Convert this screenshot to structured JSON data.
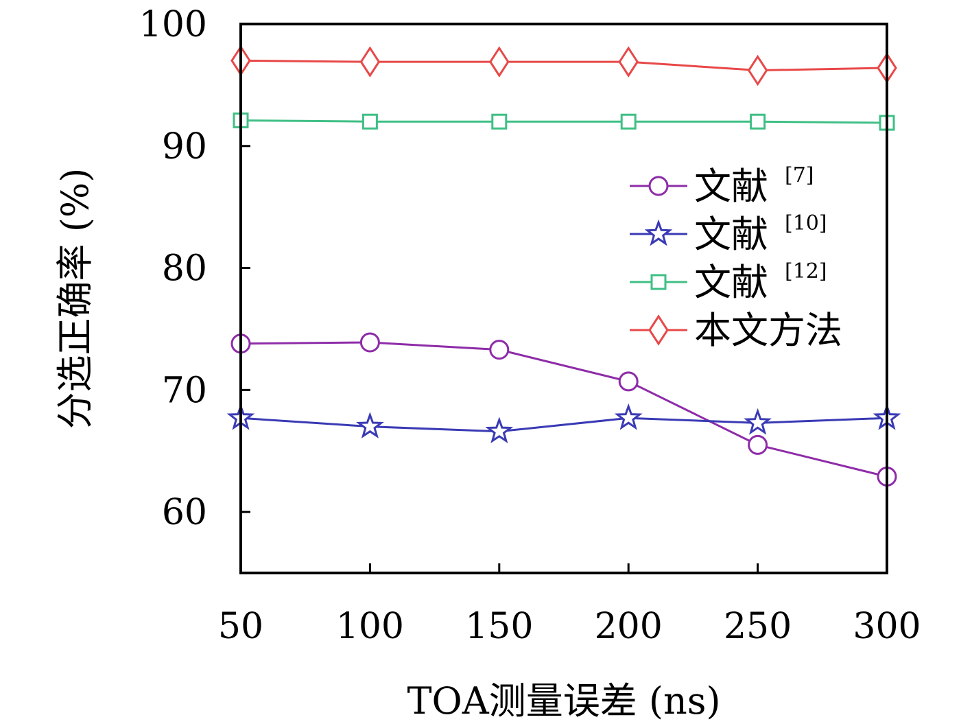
{
  "chart_data": {
    "type": "line",
    "xlabel": "TOA测量误差 (ns)",
    "ylabel": "分选正确率 (%)",
    "x": [
      50,
      100,
      150,
      200,
      250,
      300
    ],
    "xlim": [
      50,
      300
    ],
    "ylim": [
      55,
      100
    ],
    "yticks": [
      60,
      70,
      80,
      90,
      100
    ],
    "grid": false,
    "legend_position": "center-right",
    "series": [
      {
        "name": "文献",
        "ref": "[7]",
        "marker": "circle",
        "color": "#8e2ca8",
        "values": [
          73.8,
          73.9,
          73.3,
          70.7,
          65.5,
          62.9
        ]
      },
      {
        "name": "文献",
        "ref": "[10]",
        "marker": "star",
        "color": "#3a3ab5",
        "values": [
          67.7,
          67.0,
          66.6,
          67.7,
          67.3,
          67.7
        ]
      },
      {
        "name": "文献",
        "ref": "[12]",
        "marker": "square",
        "color": "#3fbf85",
        "values": [
          92.1,
          92.0,
          92.0,
          92.0,
          92.0,
          91.9
        ]
      },
      {
        "name": "本文方法",
        "ref": "",
        "marker": "diamond",
        "color": "#e84848",
        "values": [
          97.0,
          96.9,
          96.9,
          96.9,
          96.2,
          96.4
        ]
      }
    ]
  }
}
